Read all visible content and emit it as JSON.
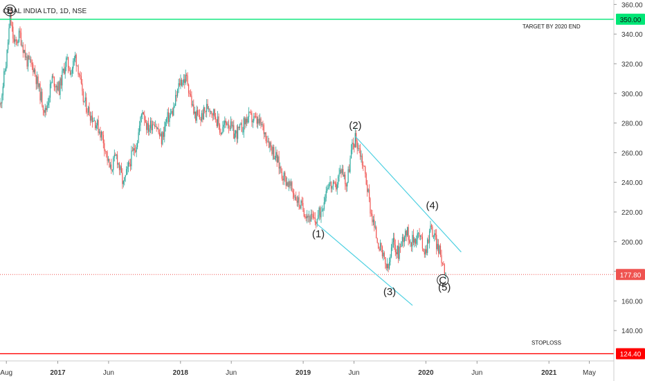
{
  "chart_data": {
    "type": "line",
    "subtype": "candlestick",
    "title": "COAL INDIA LTD, 1D, NSE",
    "xlabel": "",
    "ylabel": "",
    "x_ticks": [
      "Aug",
      "2017",
      "Jun",
      "2018",
      "Jun",
      "2019",
      "Jun",
      "2020",
      "Jun",
      "2021",
      "May"
    ],
    "y_ticks": [
      140,
      160,
      180,
      200,
      220,
      240,
      260,
      280,
      300,
      320,
      340,
      360
    ],
    "y_tick_labels": [
      "140.00",
      "160.00",
      "180.00",
      "200.00",
      "220.00",
      "240.00",
      "260.00",
      "280.00",
      "300.00",
      "320.00",
      "340.00",
      "360.00"
    ],
    "ylim": [
      120,
      363
    ],
    "xlim": [
      "2016-07-13",
      "2021-07-11"
    ],
    "grid": false,
    "colors": {
      "up": "#26a69a",
      "down": "#ef5350",
      "target": "#00e676",
      "stop": "#ff0000",
      "current": "#ef5350",
      "channel": "#4dd0e1"
    },
    "series": [
      {
        "values": [
          [
            "2016-07-13",
            292
          ],
          [
            "2016-08-01",
            322
          ],
          [
            "2016-08-12",
            351
          ],
          [
            "2016-08-25",
            332
          ],
          [
            "2016-09-10",
            340
          ],
          [
            "2016-09-30",
            322
          ],
          [
            "2016-10-20",
            318
          ],
          [
            "2016-11-09",
            300
          ],
          [
            "2016-11-25",
            287
          ],
          [
            "2016-12-15",
            310
          ],
          [
            "2017-01-05",
            303
          ],
          [
            "2017-01-25",
            322
          ],
          [
            "2017-02-10",
            315
          ],
          [
            "2017-02-22",
            325
          ],
          [
            "2017-03-05",
            315
          ],
          [
            "2017-03-15",
            297
          ],
          [
            "2017-04-05",
            287
          ],
          [
            "2017-04-25",
            280
          ],
          [
            "2017-05-15",
            270
          ],
          [
            "2017-06-05",
            248
          ],
          [
            "2017-06-25",
            258
          ],
          [
            "2017-07-15",
            238
          ],
          [
            "2017-08-05",
            255
          ],
          [
            "2017-08-25",
            268
          ],
          [
            "2017-09-10",
            290
          ],
          [
            "2017-09-25",
            276
          ],
          [
            "2017-10-15",
            282
          ],
          [
            "2017-11-05",
            268
          ],
          [
            "2017-11-20",
            282
          ],
          [
            "2017-12-10",
            288
          ],
          [
            "2017-12-30",
            308
          ],
          [
            "2018-01-20",
            310
          ],
          [
            "2018-02-10",
            286
          ],
          [
            "2018-03-01",
            283
          ],
          [
            "2018-03-25",
            292
          ],
          [
            "2018-04-15",
            285
          ],
          [
            "2018-05-01",
            274
          ],
          [
            "2018-05-20",
            282
          ],
          [
            "2018-06-10",
            272
          ],
          [
            "2018-06-30",
            276
          ],
          [
            "2018-07-20",
            284
          ],
          [
            "2018-08-10",
            282
          ],
          [
            "2018-08-31",
            278
          ],
          [
            "2018-09-20",
            268
          ],
          [
            "2018-10-10",
            258
          ],
          [
            "2018-10-30",
            246
          ],
          [
            "2018-11-15",
            240
          ],
          [
            "2018-12-05",
            232
          ],
          [
            "2018-12-25",
            224
          ],
          [
            "2019-01-15",
            218
          ],
          [
            "2019-02-05",
            213
          ],
          [
            "2019-02-25",
            222
          ],
          [
            "2019-03-15",
            240
          ],
          [
            "2019-04-05",
            235
          ],
          [
            "2019-04-25",
            250
          ],
          [
            "2019-05-10",
            238
          ],
          [
            "2019-05-25",
            262
          ],
          [
            "2019-06-05",
            270
          ],
          [
            "2019-06-20",
            260
          ],
          [
            "2019-07-05",
            245
          ],
          [
            "2019-07-20",
            222
          ],
          [
            "2019-08-05",
            205
          ],
          [
            "2019-08-25",
            190
          ],
          [
            "2019-09-10",
            180
          ],
          [
            "2019-09-25",
            200
          ],
          [
            "2019-10-10",
            192
          ],
          [
            "2019-11-01",
            208
          ],
          [
            "2019-11-20",
            200
          ],
          [
            "2019-12-10",
            205
          ],
          [
            "2019-12-30",
            193
          ],
          [
            "2020-01-15",
            210
          ],
          [
            "2020-01-31",
            200
          ],
          [
            "2020-02-15",
            190
          ],
          [
            "2020-03-01",
            178
          ]
        ]
      }
    ],
    "horizontal_lines": [
      {
        "value": 350,
        "label": "350.00",
        "note": "TARGET BY 2020 END"
      },
      {
        "value": 177.8,
        "label": "177.80",
        "note": ""
      },
      {
        "value": 124.4,
        "label": "124.40",
        "note": "STOPLOSS"
      }
    ],
    "annotations": [
      {
        "text": "(1)",
        "x": "2019-02-15",
        "y": 203
      },
      {
        "text": "(2)",
        "x": "2019-06-05",
        "y": 276
      },
      {
        "text": "(3)",
        "x": "2019-09-15",
        "y": 164
      },
      {
        "text": "(4)",
        "x": "2020-01-20",
        "y": 222
      },
      {
        "text": "(5)",
        "x": "2020-02-25",
        "y": 167
      },
      {
        "text": "B",
        "x": "2016-08-12",
        "y": 356
      },
      {
        "text": "C",
        "x": "2020-02-20",
        "y": 174
      }
    ],
    "channel_lines": [
      {
        "from": [
          "2019-02-10",
          212
        ],
        "to": [
          "2019-11-22",
          157
        ]
      },
      {
        "from": [
          "2019-06-05",
          271
        ],
        "to": [
          "2020-04-15",
          193
        ]
      }
    ]
  }
}
